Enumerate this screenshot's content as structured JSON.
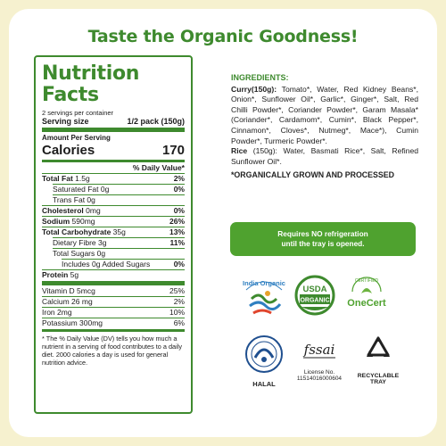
{
  "headline": "Taste the Organic Goodness!",
  "nutrition": {
    "title": "Nutrition Facts",
    "servings_per_container": "2 servings per container",
    "serving_size_label": "Serving size",
    "serving_size_value": "1/2 pack (150g)",
    "amount_per_serving": "Amount Per Serving",
    "calories_label": "Calories",
    "calories_value": "170",
    "dv_header": "% Daily Value*",
    "rows": {
      "total_fat": {
        "label": "Total Fat",
        "amount": "1.5g",
        "dv": "2%"
      },
      "saturated_fat": {
        "label": "Saturated Fat 0g",
        "dv": "0%"
      },
      "trans_fat": {
        "label": "Trans Fat 0g"
      },
      "cholesterol": {
        "label": "Cholesterol",
        "amount": "0mg",
        "dv": "0%"
      },
      "sodium": {
        "label": "Sodium",
        "amount": "590mg",
        "dv": "26%"
      },
      "total_carb": {
        "label": "Total Carbohydrate",
        "amount": "35g",
        "dv": "13%"
      },
      "dietary_fibre": {
        "label": "Dietary Fibre 3g",
        "dv": "11%"
      },
      "total_sugars": {
        "label": "Total Sugars 0g"
      },
      "added_sugars": {
        "label": "Includes 0g Added Sugars",
        "dv": "0%"
      },
      "protein": {
        "label": "Protein",
        "amount": "5g"
      },
      "vitamin_d": {
        "label": "Vitamin D 5mcg",
        "dv": "25%"
      },
      "calcium": {
        "label": "Calcium 26 mg",
        "dv": "2%"
      },
      "iron": {
        "label": "Iron 2mg",
        "dv": "10%"
      },
      "potassium": {
        "label": "Potassium 300mg",
        "dv": "6%"
      }
    },
    "footnote": "* The % Daily Value (DV) tells you how much a nutrient in a serving of food contributes to a daily diet. 2000 calories a day is used for general nutrition advice."
  },
  "ingredients": {
    "title": "INGREDIENTS:",
    "curry_label": "Curry(150g):",
    "curry_text": "Tomato*, Water, Red Kidney Beans*, Onion*, Sunflower Oil*, Garlic*, Ginger*, Salt, Red Chilli Powder*, Coriander Powder*, Garam Masala* (Coriander*, Cardamom*, Cumin*, Black Pepper*, Cinnamon*, Cloves*, Nutmeg*, Mace*), Cumin Powder*, Turmeric Powder*.",
    "rice_label": "Rice",
    "rice_text": "(150g): Water, Basmati Rice*, Salt, Refined Sunflower Oil*.",
    "organic_note": "*ORGANICALLY GROWN AND PROCESSED"
  },
  "refrigeration": {
    "line1": "Requires NO refrigeration",
    "line2": "until the tray is opened."
  },
  "logos": {
    "india_organic": "India Organic",
    "usda_top": "USDA",
    "usda_bottom": "ORGANIC",
    "onecert_ring": "CERTIFIED",
    "onecert": "OneCert",
    "halal": "HALAL",
    "fssai": "fssai",
    "license_label": "License No.",
    "license_no": "11514016000604",
    "recycle_line1": "RECYCLABLE",
    "recycle_line2": "TRAY"
  },
  "colors": {
    "green": "#3e8a2e",
    "badge_green": "#4fa22f",
    "background": "#f6f1cf"
  }
}
